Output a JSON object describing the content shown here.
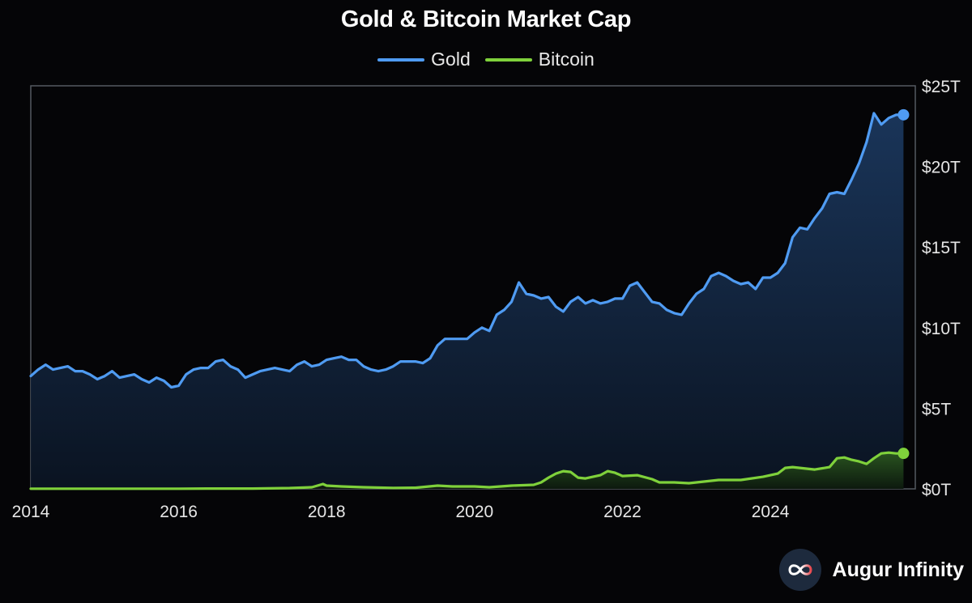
{
  "chart_data": {
    "type": "area",
    "title": "Gold & Bitcoin Market Cap",
    "x_ticks": [
      "2014",
      "2016",
      "2018",
      "2020",
      "2022",
      "2024"
    ],
    "y_ticks": [
      "$0T",
      "$5T",
      "$10T",
      "$15T",
      "$20T",
      "$25T"
    ],
    "xlim": [
      2014.0,
      2025.85
    ],
    "ylim": [
      0,
      25
    ],
    "y_unit": "trillion USD",
    "grid": false,
    "legend_position": "top-center",
    "series": [
      {
        "name": "Gold",
        "color": "#4f9bf2",
        "points": [
          [
            2014.0,
            7.0
          ],
          [
            2014.1,
            7.4
          ],
          [
            2014.2,
            7.7
          ],
          [
            2014.3,
            7.4
          ],
          [
            2014.4,
            7.5
          ],
          [
            2014.5,
            7.6
          ],
          [
            2014.6,
            7.3
          ],
          [
            2014.7,
            7.3
          ],
          [
            2014.8,
            7.1
          ],
          [
            2014.9,
            6.8
          ],
          [
            2015.0,
            7.0
          ],
          [
            2015.1,
            7.3
          ],
          [
            2015.2,
            6.9
          ],
          [
            2015.3,
            7.0
          ],
          [
            2015.4,
            7.1
          ],
          [
            2015.5,
            6.8
          ],
          [
            2015.6,
            6.6
          ],
          [
            2015.7,
            6.9
          ],
          [
            2015.8,
            6.7
          ],
          [
            2015.9,
            6.3
          ],
          [
            2016.0,
            6.4
          ],
          [
            2016.1,
            7.1
          ],
          [
            2016.2,
            7.4
          ],
          [
            2016.3,
            7.5
          ],
          [
            2016.4,
            7.5
          ],
          [
            2016.5,
            7.9
          ],
          [
            2016.6,
            8.0
          ],
          [
            2016.7,
            7.6
          ],
          [
            2016.8,
            7.4
          ],
          [
            2016.9,
            6.9
          ],
          [
            2017.0,
            7.1
          ],
          [
            2017.1,
            7.3
          ],
          [
            2017.2,
            7.4
          ],
          [
            2017.3,
            7.5
          ],
          [
            2017.4,
            7.4
          ],
          [
            2017.5,
            7.3
          ],
          [
            2017.6,
            7.7
          ],
          [
            2017.7,
            7.9
          ],
          [
            2017.8,
            7.6
          ],
          [
            2017.9,
            7.7
          ],
          [
            2018.0,
            8.0
          ],
          [
            2018.1,
            8.1
          ],
          [
            2018.2,
            8.2
          ],
          [
            2018.3,
            8.0
          ],
          [
            2018.4,
            8.0
          ],
          [
            2018.5,
            7.6
          ],
          [
            2018.6,
            7.4
          ],
          [
            2018.7,
            7.3
          ],
          [
            2018.8,
            7.4
          ],
          [
            2018.9,
            7.6
          ],
          [
            2019.0,
            7.9
          ],
          [
            2019.1,
            7.9
          ],
          [
            2019.2,
            7.9
          ],
          [
            2019.3,
            7.8
          ],
          [
            2019.4,
            8.1
          ],
          [
            2019.5,
            8.9
          ],
          [
            2019.6,
            9.3
          ],
          [
            2019.7,
            9.3
          ],
          [
            2019.8,
            9.3
          ],
          [
            2019.9,
            9.3
          ],
          [
            2020.0,
            9.7
          ],
          [
            2020.1,
            10.0
          ],
          [
            2020.2,
            9.8
          ],
          [
            2020.3,
            10.8
          ],
          [
            2020.4,
            11.1
          ],
          [
            2020.5,
            11.6
          ],
          [
            2020.6,
            12.8
          ],
          [
            2020.7,
            12.1
          ],
          [
            2020.8,
            12.0
          ],
          [
            2020.9,
            11.8
          ],
          [
            2021.0,
            11.9
          ],
          [
            2021.1,
            11.3
          ],
          [
            2021.2,
            11.0
          ],
          [
            2021.3,
            11.6
          ],
          [
            2021.4,
            11.9
          ],
          [
            2021.5,
            11.5
          ],
          [
            2021.6,
            11.7
          ],
          [
            2021.7,
            11.5
          ],
          [
            2021.8,
            11.6
          ],
          [
            2021.9,
            11.8
          ],
          [
            2022.0,
            11.8
          ],
          [
            2022.1,
            12.6
          ],
          [
            2022.2,
            12.8
          ],
          [
            2022.3,
            12.2
          ],
          [
            2022.4,
            11.6
          ],
          [
            2022.5,
            11.5
          ],
          [
            2022.6,
            11.1
          ],
          [
            2022.7,
            10.9
          ],
          [
            2022.8,
            10.8
          ],
          [
            2022.9,
            11.5
          ],
          [
            2023.0,
            12.1
          ],
          [
            2023.1,
            12.4
          ],
          [
            2023.2,
            13.2
          ],
          [
            2023.3,
            13.4
          ],
          [
            2023.4,
            13.2
          ],
          [
            2023.5,
            12.9
          ],
          [
            2023.6,
            12.7
          ],
          [
            2023.7,
            12.8
          ],
          [
            2023.8,
            12.4
          ],
          [
            2023.9,
            13.1
          ],
          [
            2024.0,
            13.1
          ],
          [
            2024.1,
            13.4
          ],
          [
            2024.2,
            14.0
          ],
          [
            2024.3,
            15.6
          ],
          [
            2024.4,
            16.2
          ],
          [
            2024.5,
            16.1
          ],
          [
            2024.6,
            16.8
          ],
          [
            2024.7,
            17.4
          ],
          [
            2024.8,
            18.3
          ],
          [
            2024.9,
            18.4
          ],
          [
            2025.0,
            18.3
          ],
          [
            2025.1,
            19.2
          ],
          [
            2025.2,
            20.2
          ],
          [
            2025.3,
            21.5
          ],
          [
            2025.4,
            23.3
          ],
          [
            2025.5,
            22.6
          ],
          [
            2025.6,
            23.0
          ],
          [
            2025.7,
            23.2
          ],
          [
            2025.8,
            23.2
          ]
        ]
      },
      {
        "name": "Bitcoin",
        "color": "#7fd13b",
        "points": [
          [
            2014.0,
            0.01
          ],
          [
            2014.5,
            0.01
          ],
          [
            2015.0,
            0.01
          ],
          [
            2015.5,
            0.01
          ],
          [
            2016.0,
            0.01
          ],
          [
            2016.5,
            0.02
          ],
          [
            2017.0,
            0.02
          ],
          [
            2017.5,
            0.05
          ],
          [
            2017.8,
            0.1
          ],
          [
            2017.95,
            0.3
          ],
          [
            2018.0,
            0.2
          ],
          [
            2018.2,
            0.15
          ],
          [
            2018.5,
            0.1
          ],
          [
            2018.9,
            0.06
          ],
          [
            2019.2,
            0.07
          ],
          [
            2019.5,
            0.2
          ],
          [
            2019.7,
            0.15
          ],
          [
            2019.9,
            0.15
          ],
          [
            2020.0,
            0.15
          ],
          [
            2020.2,
            0.1
          ],
          [
            2020.5,
            0.2
          ],
          [
            2020.8,
            0.25
          ],
          [
            2020.9,
            0.4
          ],
          [
            2021.0,
            0.7
          ],
          [
            2021.1,
            0.95
          ],
          [
            2021.2,
            1.1
          ],
          [
            2021.3,
            1.05
          ],
          [
            2021.4,
            0.7
          ],
          [
            2021.5,
            0.65
          ],
          [
            2021.6,
            0.75
          ],
          [
            2021.7,
            0.85
          ],
          [
            2021.8,
            1.1
          ],
          [
            2021.9,
            1.0
          ],
          [
            2022.0,
            0.8
          ],
          [
            2022.2,
            0.85
          ],
          [
            2022.4,
            0.6
          ],
          [
            2022.5,
            0.4
          ],
          [
            2022.7,
            0.4
          ],
          [
            2022.9,
            0.35
          ],
          [
            2023.0,
            0.4
          ],
          [
            2023.3,
            0.55
          ],
          [
            2023.6,
            0.55
          ],
          [
            2023.9,
            0.75
          ],
          [
            2024.0,
            0.85
          ],
          [
            2024.1,
            0.95
          ],
          [
            2024.2,
            1.3
          ],
          [
            2024.3,
            1.35
          ],
          [
            2024.5,
            1.25
          ],
          [
            2024.6,
            1.2
          ],
          [
            2024.8,
            1.35
          ],
          [
            2024.9,
            1.9
          ],
          [
            2025.0,
            1.95
          ],
          [
            2025.1,
            1.8
          ],
          [
            2025.2,
            1.7
          ],
          [
            2025.3,
            1.55
          ],
          [
            2025.4,
            1.9
          ],
          [
            2025.5,
            2.2
          ],
          [
            2025.6,
            2.25
          ],
          [
            2025.7,
            2.2
          ],
          [
            2025.8,
            2.2
          ]
        ]
      }
    ]
  },
  "brand": {
    "name": "Augur Infinity",
    "logo_icon": "infinity-logo-icon"
  }
}
